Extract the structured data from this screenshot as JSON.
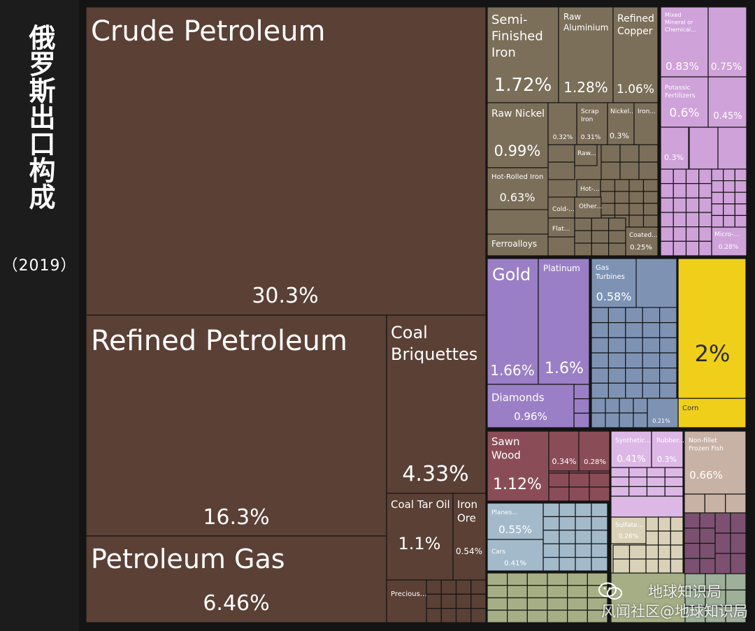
{
  "sidebar": {
    "title": "俄罗斯出口构成",
    "year": "（2019）"
  },
  "watermark": {
    "line1": "地球知识局",
    "line2": "风闻社区@地球知识局",
    "icon": "wechat-icon"
  },
  "colors": {
    "petroleum": "#5b4036",
    "metals": "#7c6f5a",
    "chemicals": "#cfa2d9",
    "precious": "#9a7fc6",
    "machinery": "#7e93b4",
    "vegetable": "#f0cf1a",
    "wood": "#8a4d57",
    "plastics": "#ddb8e6",
    "animal": "#c8b2a6",
    "transport": "#a3bacb",
    "stone": "#dad2b8",
    "foodstuffs": "#a6ae86",
    "misc": "#7c5070",
    "textiles": "#9fb09a"
  },
  "chart_data": {
    "type": "treemap",
    "title": "",
    "unit": "%",
    "items": [
      {
        "name": "Crude Petroleum",
        "value": 30.3,
        "category": "petroleum"
      },
      {
        "name": "Refined Petroleum",
        "value": 16.3,
        "category": "petroleum"
      },
      {
        "name": "Petroleum Gas",
        "value": 6.46,
        "category": "petroleum"
      },
      {
        "name": "Coal Briquettes",
        "value": 4.33,
        "category": "petroleum"
      },
      {
        "name": "Coal Tar Oil",
        "value": 1.1,
        "category": "petroleum"
      },
      {
        "name": "Iron Ore",
        "value": 0.54,
        "category": "petroleum"
      },
      {
        "name": "Precious...",
        "value": null,
        "category": "petroleum"
      },
      {
        "name": "Semi-Finished Iron",
        "value": 1.72,
        "category": "metals"
      },
      {
        "name": "Raw Aluminium",
        "value": 1.28,
        "category": "metals"
      },
      {
        "name": "Refined Copper",
        "value": 1.06,
        "category": "metals"
      },
      {
        "name": "Raw Nickel",
        "value": 0.99,
        "category": "metals"
      },
      {
        "name": "Hot-Rolled Iron",
        "value": 0.63,
        "category": "metals"
      },
      {
        "name": "Ferroalloys",
        "value": null,
        "category": "metals"
      },
      {
        "name": "Scrap Iron",
        "value": 0.31,
        "category": "metals"
      },
      {
        "name": "Nickel...",
        "value": 0.3,
        "category": "metals"
      },
      {
        "name": "Iron...",
        "value": null,
        "category": "metals"
      },
      {
        "name": "Raw...",
        "value": null,
        "category": "metals"
      },
      {
        "name": "Hot-...",
        "value": null,
        "category": "metals"
      },
      {
        "name": "Cold-...",
        "value": null,
        "category": "metals"
      },
      {
        "name": "Other...",
        "value": null,
        "category": "metals"
      },
      {
        "name": "Flat...",
        "value": null,
        "category": "metals"
      },
      {
        "name": "Coated...",
        "value": 0.25,
        "category": "metals"
      },
      {
        "name": "Mixed Mineral or Chemical...",
        "value": 0.83,
        "category": "chemicals"
      },
      {
        "name": "Potassic Fertilizers",
        "value": 0.6,
        "category": "chemicals"
      },
      {
        "name": "Micro-...",
        "value": 0.28,
        "category": "chemicals"
      },
      {
        "name": "Gold",
        "value": 1.66,
        "category": "precious"
      },
      {
        "name": "Platinum",
        "value": 1.6,
        "category": "precious"
      },
      {
        "name": "Diamonds",
        "value": 0.96,
        "category": "precious"
      },
      {
        "name": "Gas Turbines",
        "value": 0.58,
        "category": "machinery"
      },
      {
        "name": "Corn",
        "value": null,
        "category": "vegetable"
      },
      {
        "name": "Sawn Wood",
        "value": 1.12,
        "category": "wood"
      },
      {
        "name": "Synthetic...",
        "value": 0.41,
        "category": "plastics"
      },
      {
        "name": "Rubber...",
        "value": 0.3,
        "category": "plastics"
      },
      {
        "name": "Non-fillet Frozen Fish",
        "value": 0.66,
        "category": "animal"
      },
      {
        "name": "Planes...",
        "value": 0.55,
        "category": "transport"
      },
      {
        "name": "Cars",
        "value": 0.41,
        "category": "transport"
      },
      {
        "name": "Sulfate...",
        "value": 0.26,
        "category": "stone"
      }
    ],
    "unlabeled_values": [
      0.32,
      0.34,
      0.28,
      0.75,
      0.45,
      0.3,
      0.21,
      2
    ]
  }
}
